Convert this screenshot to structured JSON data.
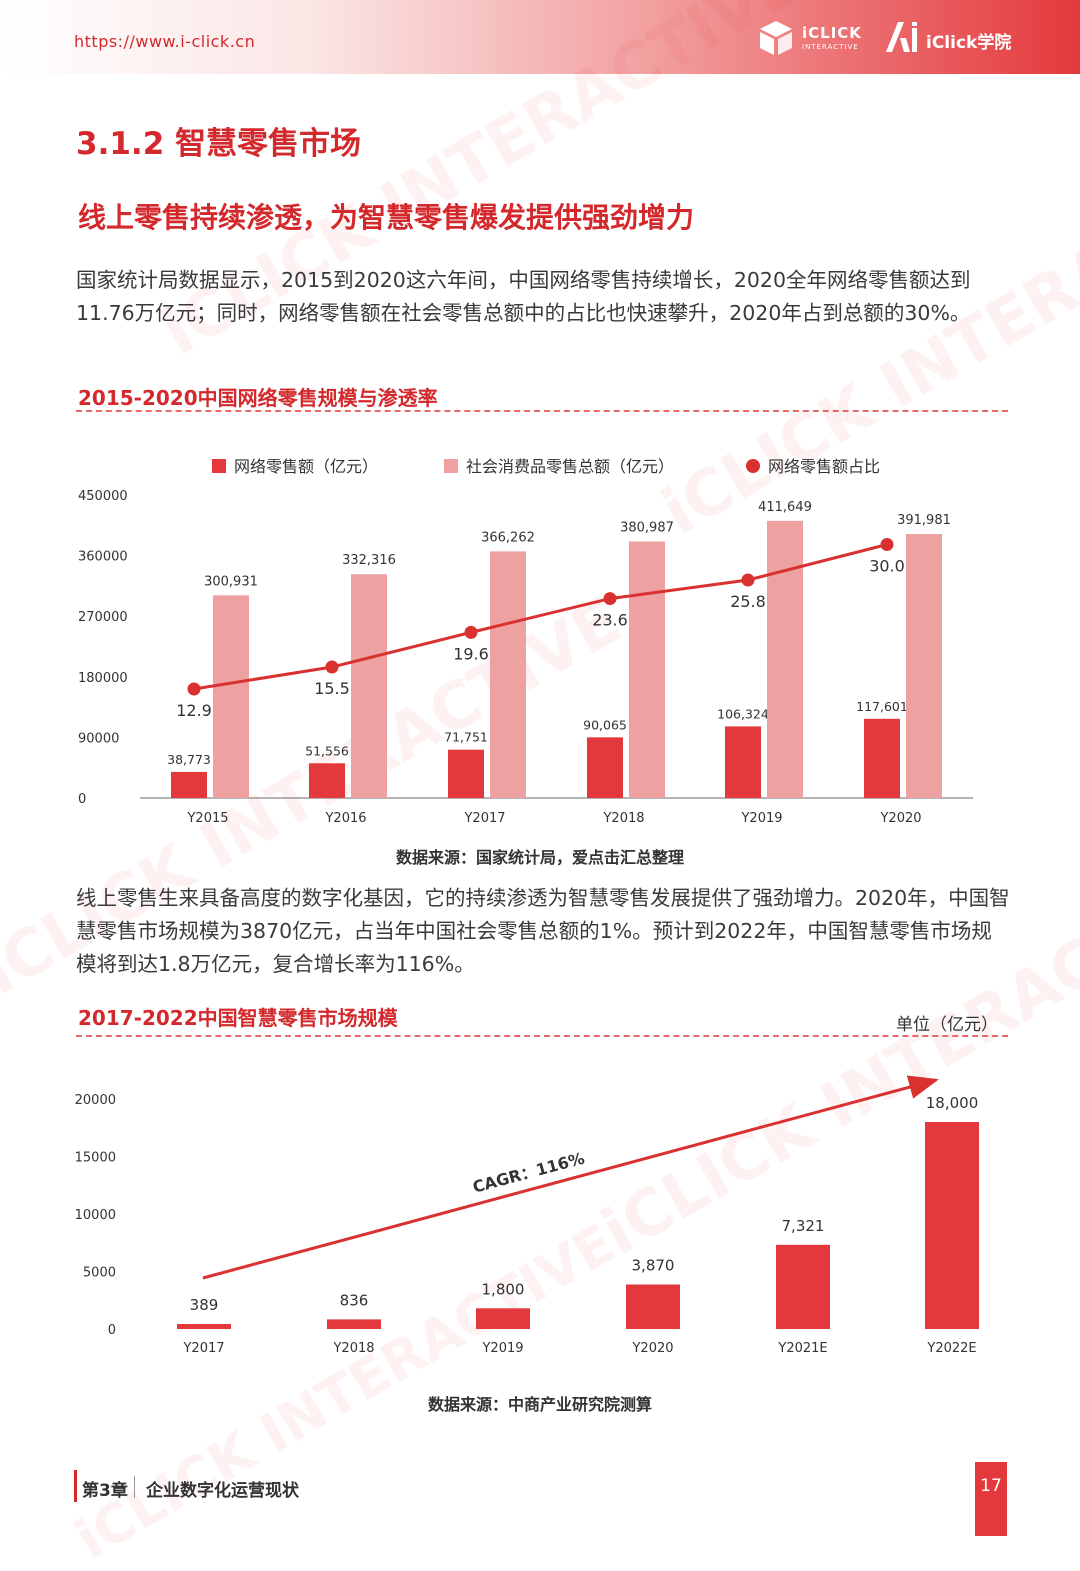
{
  "header": {
    "url": "https://www.i-click.cn",
    "logo1_text": "iCLICK",
    "logo1_sub": "INTERACTIVE",
    "logo2_text": "iClick学院"
  },
  "watermark_text": "iCLICK INTERACTIVE",
  "section_heading": "3.1.2 智慧零售市场",
  "subheading": "线上零售持续渗透，为智慧零售爆发提供强劲增力",
  "paragraph1": "国家统计局数据显示，2015到2020这六年间，中国网络零售持续增长，2020全年网络零售额达到11.76万亿元；同时，网络零售额在社会零售总额中的占比也快速攀升，2020年占到总额的30%。",
  "chart1_title": "2015-2020中国网络零售规模与渗透率",
  "chart1_source": "数据来源：国家统计局，爱点击汇总整理",
  "paragraph2": "线上零售生来具备高度的数字化基因，它的持续渗透为智慧零售发展提供了强劲增力。2020年，中国智慧零售市场规模为3870亿元，占当年中国社会零售总额的1%。预计到2022年，中国智慧零售市场规模将到达1.8万亿元，复合增长率为116%。",
  "chart2_title": "2017-2022中国智慧零售市场规模",
  "chart2_unit": "单位（亿元）",
  "chart2_source": "数据来源：中商产业研究院测算",
  "footer": {
    "chapter": "第3章",
    "title": "企业数字化运营现状",
    "page_number": "17"
  },
  "colors": {
    "primary_red": "#e4393c",
    "light_red": "#eda1a1",
    "heading_red": "#d4292c",
    "line_red": "#d9312f"
  },
  "chart_data": [
    {
      "type": "bar",
      "title": "",
      "categories": [
        "Y2015",
        "Y2016",
        "Y2017",
        "Y2018",
        "Y2019",
        "Y2020"
      ],
      "ylim": [
        0,
        450000
      ],
      "yticks": [
        "0",
        "90000",
        "180000",
        "270000",
        "360000",
        "450000"
      ],
      "legend_position": "top",
      "grid": false,
      "series": [
        {
          "name": "网络零售额（亿元）",
          "kind": "bar",
          "color": "#e4393c",
          "values": [
            38773,
            51556,
            71751,
            90065,
            106324,
            117601
          ],
          "labels": [
            "38,773",
            "51,556",
            "71,751",
            "90,065",
            "106,324",
            "117,601"
          ]
        },
        {
          "name": "社会消费品零售总额（亿元）",
          "kind": "bar",
          "color": "#eda1a1",
          "values": [
            300931,
            332316,
            366262,
            380987,
            411649,
            391981
          ],
          "labels": [
            "300,931",
            "332,316",
            "366,262",
            "380,987",
            "411,649",
            "391,981"
          ]
        },
        {
          "name": "网络零售额占比",
          "kind": "line",
          "color": "#d9312f",
          "values": [
            12.9,
            15.5,
            19.6,
            23.6,
            25.8,
            30.0
          ],
          "labels": [
            "12.9",
            "15.5",
            "19.6",
            "23.6",
            "25.8",
            "30.0"
          ]
        }
      ]
    },
    {
      "type": "bar",
      "title": "",
      "categories": [
        "Y2017",
        "Y2018",
        "Y2019",
        "Y2020",
        "Y2021E",
        "Y2022E"
      ],
      "ylim": [
        0,
        20000
      ],
      "yticks": [
        "0",
        "5000",
        "10000",
        "15000",
        "20000"
      ],
      "grid": false,
      "series": [
        {
          "color": "#e4393c",
          "values": [
            389,
            836,
            1800,
            3870,
            7321,
            18000
          ],
          "labels": [
            "389",
            "836",
            "1,800",
            "3,870",
            "7,321",
            "18,000"
          ]
        }
      ],
      "annotation": "CAGR：116%"
    }
  ]
}
